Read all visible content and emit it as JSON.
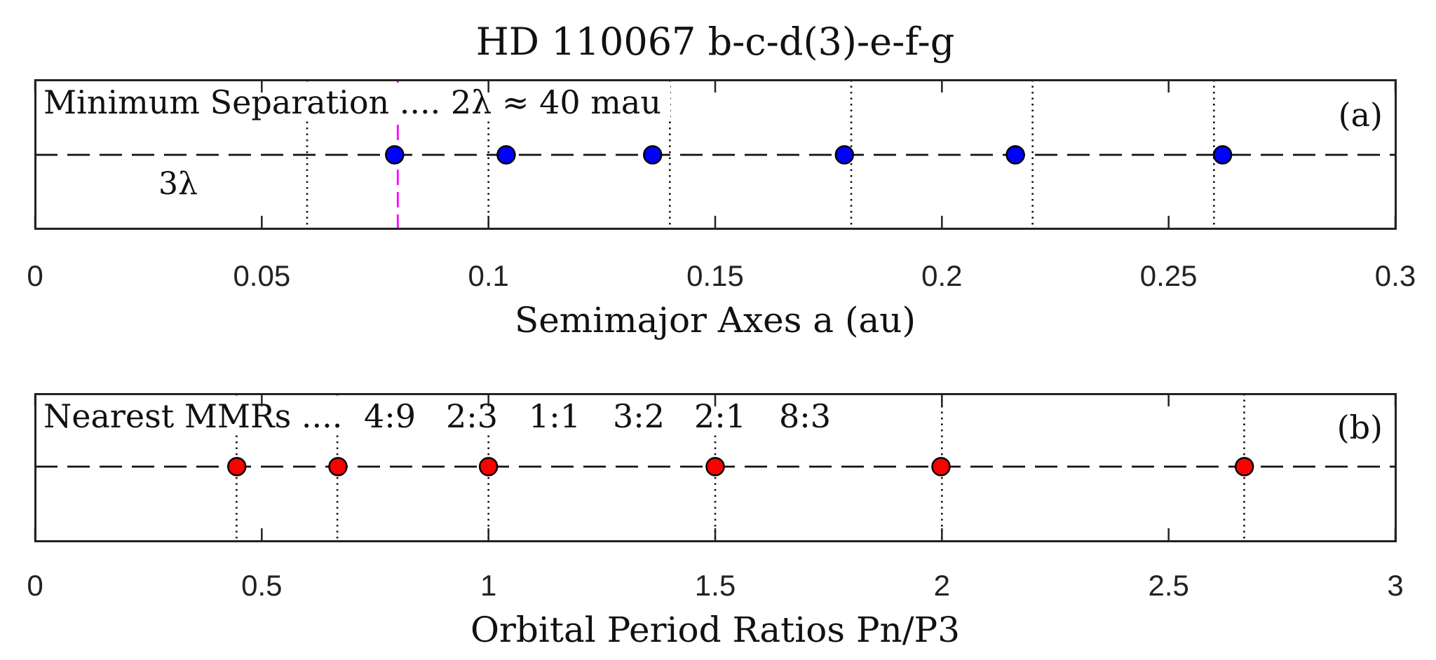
{
  "chart_data": [
    {
      "type": "scatter",
      "panel": "(a)",
      "title": "HD 110067  b-c-d(3)-e-f-g",
      "annotation": "Minimum Separation ....  2λ ≈ 40 mau",
      "lambda_label": "3λ",
      "xlabel": "Semimajor Axes  a (au)",
      "xlim": [
        0,
        0.3
      ],
      "xticks": [
        0,
        0.05,
        0.1,
        0.15,
        0.2,
        0.25,
        0.3
      ],
      "xtick_labels": [
        "0",
        "0.05",
        "0.1",
        "0.15",
        "0.2",
        "0.25",
        "0.3"
      ],
      "x": [
        0.0793,
        0.1039,
        0.1362,
        0.1785,
        0.2162,
        0.2619
      ],
      "y_level": 0,
      "marker_color": "#0000ff",
      "reference_lines": [
        0.06,
        0.1,
        0.14,
        0.18,
        0.22,
        0.26
      ],
      "highlight_line": 0.08,
      "highlight_color": "#ff00ff",
      "grid": false
    },
    {
      "type": "scatter",
      "panel": "(b)",
      "annotation_prefix": "Nearest MMRs ....",
      "mmr_labels": [
        "4:9",
        "2:3",
        "1:1",
        "3:2",
        "2:1",
        "8:3"
      ],
      "xlabel": "Orbital Period Ratios  Pn/P3",
      "xlim": [
        0,
        3
      ],
      "xticks": [
        0,
        0.5,
        1,
        1.5,
        2,
        2.5,
        3
      ],
      "xtick_labels": [
        "0",
        "0.5",
        "1",
        "1.5",
        "2",
        "2.5",
        "3"
      ],
      "x": [
        0.445,
        0.668,
        1.0,
        1.5,
        1.998,
        2.667
      ],
      "y_level": 0,
      "marker_color": "#ff0000",
      "reference_lines": [
        0.4444,
        0.6667,
        1.0,
        1.5,
        2.0,
        2.6667
      ],
      "grid": false
    }
  ]
}
